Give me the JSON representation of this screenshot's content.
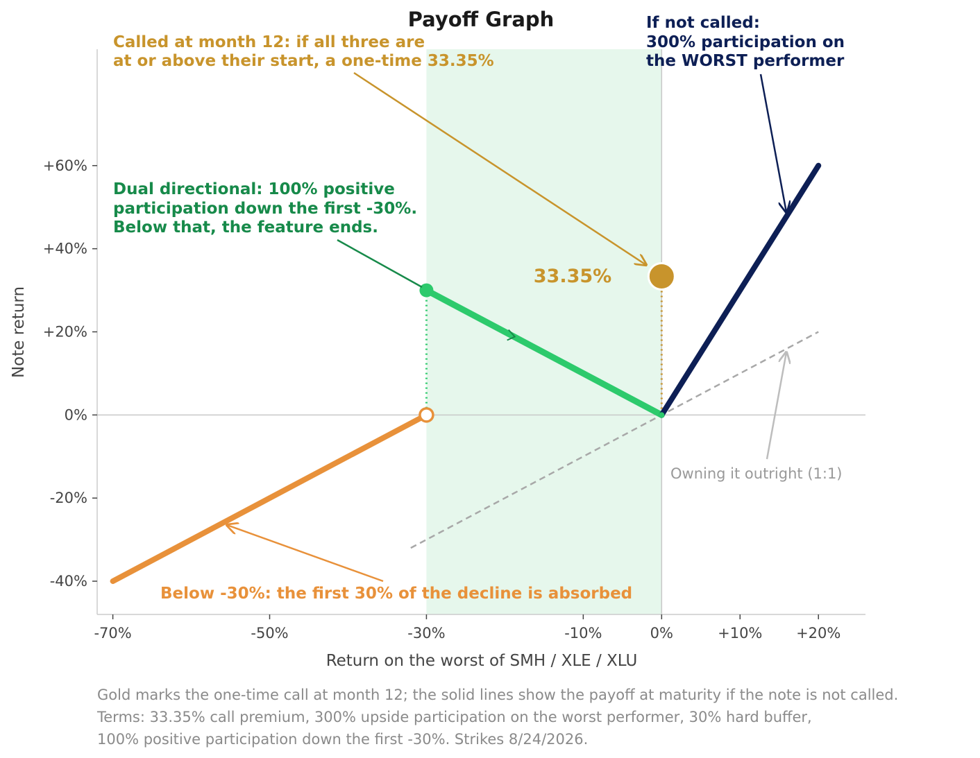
{
  "chart_data": {
    "type": "line",
    "title": "Payoff Graph",
    "xlabel": "Return on the worst of SMH / XLE / XLU",
    "ylabel": "Note return",
    "xlim": [
      -72,
      26
    ],
    "ylim": [
      -48,
      88
    ],
    "xticks": [
      -70,
      -50,
      -30,
      -10,
      0,
      10,
      20
    ],
    "xtick_labels": [
      "-70%",
      "-50%",
      "-30%",
      "-10%",
      "0%",
      "+10%",
      "+20%"
    ],
    "yticks": [
      -40,
      -20,
      0,
      20,
      40,
      60
    ],
    "ytick_labels": [
      "-40%",
      "-20%",
      "0%",
      "+20%",
      "+40%",
      "+60%"
    ],
    "shaded_region": {
      "x": [
        -30,
        0
      ],
      "color": "#e6f7ec"
    },
    "reference_lines": {
      "x": 0,
      "y": 0
    },
    "series": [
      {
        "key": "buffer_zone",
        "color": "#e8913a",
        "style": "solid",
        "points": [
          [
            -70,
            -40
          ],
          [
            -30,
            0
          ]
        ]
      },
      {
        "key": "dual_directional",
        "color": "#2dca6c",
        "style": "solid",
        "points": [
          [
            -30,
            30
          ],
          [
            0,
            0
          ]
        ]
      },
      {
        "key": "upside",
        "color": "#0d1f55",
        "style": "solid",
        "points": [
          [
            0,
            0
          ],
          [
            20,
            60
          ]
        ]
      },
      {
        "key": "outright",
        "color": "#a8a8a8",
        "style": "dashed",
        "points": [
          [
            -32,
            -32
          ],
          [
            20,
            20
          ]
        ]
      }
    ],
    "call_point": {
      "x": 0,
      "y": 33.35,
      "label": "33.35%",
      "color": "#c8942c"
    },
    "markers": [
      {
        "x": -30,
        "y": 30,
        "color": "#2dca6c",
        "filled": true
      },
      {
        "x": -30,
        "y": 0,
        "color": "#e8913a",
        "filled": false
      }
    ],
    "annotations": [
      {
        "key": "called",
        "color": "#c8942c",
        "lines": [
          "Called at month 12: if all three are",
          "at or above their start, a one-time 33.35%"
        ]
      },
      {
        "key": "not_called",
        "color": "#0d1f55",
        "lines": [
          "If not called:",
          "300% participation on",
          "the WORST performer"
        ]
      },
      {
        "key": "dual",
        "color": "#178a4a",
        "lines": [
          "Dual directional: 100% positive",
          "participation down the first -30%.",
          "Below that, the feature ends."
        ]
      },
      {
        "key": "buffer",
        "color": "#e8913a",
        "lines": [
          "Below -30%: the first 30% of the decline is absorbed"
        ]
      },
      {
        "key": "outright",
        "color": "#999999",
        "lines": [
          "Owning it outright (1:1)"
        ]
      }
    ]
  },
  "caption": {
    "line1": "Gold marks the one-time call at month 12; the solid lines show the payoff at maturity if the note is not called.",
    "line2": "Terms: 33.35% call premium, 300% upside participation on the worst performer, 30% hard buffer,",
    "line3": "100% positive participation down the first -30%. Strikes 8/24/2026."
  }
}
